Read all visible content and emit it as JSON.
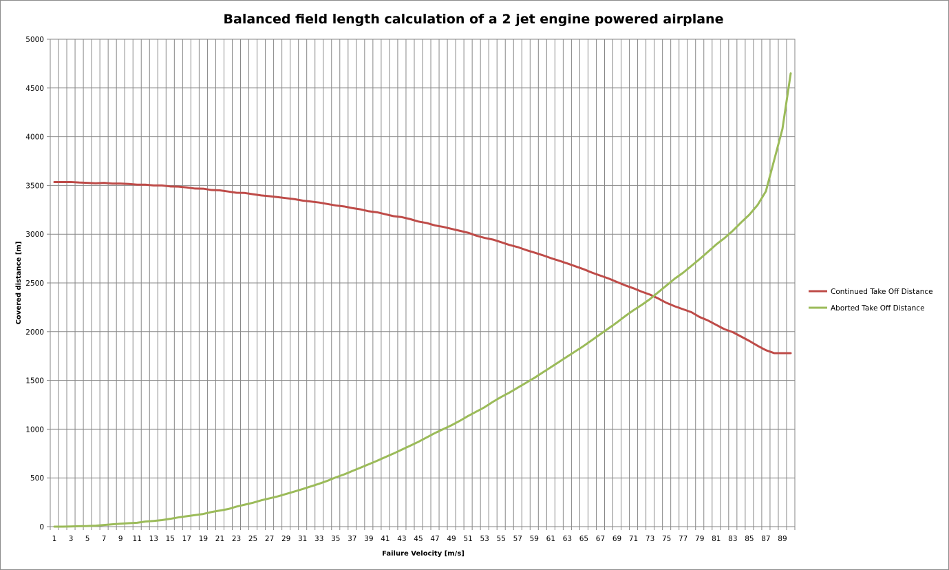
{
  "chart_data": {
    "type": "line",
    "title": "Balanced field length calculation of a 2 jet engine powered airplane",
    "xlabel": "Failure Velocity [m/s]",
    "ylabel": "Covered distance [m]",
    "x": [
      1,
      2,
      3,
      4,
      5,
      6,
      7,
      8,
      9,
      10,
      11,
      12,
      13,
      14,
      15,
      16,
      17,
      18,
      19,
      20,
      21,
      22,
      23,
      24,
      25,
      26,
      27,
      28,
      29,
      30,
      31,
      32,
      33,
      34,
      35,
      36,
      37,
      38,
      39,
      40,
      41,
      42,
      43,
      44,
      45,
      46,
      47,
      48,
      49,
      50,
      51,
      52,
      53,
      54,
      55,
      56,
      57,
      58,
      59,
      60,
      61,
      62,
      63,
      64,
      65,
      66,
      67,
      68,
      69,
      70,
      71,
      72,
      73,
      74,
      75,
      76,
      77,
      78,
      79,
      80,
      81,
      82,
      83,
      84,
      85,
      86,
      87,
      88,
      89,
      90
    ],
    "x_tick_labels": [
      "1",
      "3",
      "5",
      "7",
      "9",
      "11",
      "13",
      "15",
      "17",
      "19",
      "21",
      "23",
      "25",
      "27",
      "29",
      "31",
      "33",
      "35",
      "37",
      "39",
      "41",
      "43",
      "45",
      "47",
      "49",
      "51",
      "53",
      "55",
      "57",
      "59",
      "61",
      "63",
      "65",
      "67",
      "69",
      "71",
      "73",
      "75",
      "77",
      "79",
      "81",
      "83",
      "85",
      "87",
      "89"
    ],
    "y_ticks": [
      0,
      500,
      1000,
      1500,
      2000,
      2500,
      3000,
      3500,
      4000,
      4500,
      5000
    ],
    "ylim": [
      0,
      5000
    ],
    "grid": true,
    "legend_position": "right",
    "series": [
      {
        "name": "Continued Take Off Distance",
        "color": "#be4b48",
        "values": [
          3535,
          3535,
          3535,
          3530,
          3527,
          3522,
          3527,
          3520,
          3520,
          3515,
          3508,
          3508,
          3500,
          3500,
          3490,
          3488,
          3480,
          3468,
          3467,
          3453,
          3450,
          3438,
          3425,
          3423,
          3410,
          3398,
          3390,
          3380,
          3370,
          3360,
          3345,
          3335,
          3325,
          3310,
          3295,
          3285,
          3268,
          3255,
          3235,
          3225,
          3205,
          3185,
          3175,
          3155,
          3130,
          3115,
          3090,
          3075,
          3055,
          3035,
          3015,
          2985,
          2962,
          2945,
          2918,
          2890,
          2868,
          2838,
          2812,
          2785,
          2755,
          2728,
          2700,
          2670,
          2640,
          2605,
          2575,
          2545,
          2510,
          2475,
          2445,
          2410,
          2380,
          2340,
          2295,
          2260,
          2230,
          2200,
          2150,
          2115,
          2070,
          2025,
          1995,
          1950,
          1905,
          1855,
          1810,
          1780,
          1780,
          1780
        ]
      },
      {
        "name": "Aborted Take Off Distance",
        "color": "#9bbb59",
        "values": [
          0,
          0,
          2,
          4,
          6,
          10,
          17,
          24,
          30,
          35,
          40,
          52,
          58,
          67,
          80,
          95,
          107,
          118,
          130,
          150,
          165,
          180,
          205,
          225,
          245,
          270,
          290,
          310,
          335,
          360,
          385,
          413,
          440,
          470,
          505,
          535,
          570,
          605,
          640,
          675,
          713,
          750,
          790,
          830,
          870,
          915,
          960,
          1000,
          1040,
          1085,
          1135,
          1180,
          1225,
          1280,
          1330,
          1375,
          1425,
          1475,
          1525,
          1580,
          1635,
          1690,
          1745,
          1800,
          1855,
          1915,
          1975,
          2035,
          2095,
          2160,
          2220,
          2275,
          2335,
          2405,
          2475,
          2545,
          2605,
          2675,
          2745,
          2820,
          2895,
          2960,
          3035,
          3120,
          3200,
          3300,
          3440,
          3760,
          4080,
          4650
        ]
      }
    ]
  }
}
